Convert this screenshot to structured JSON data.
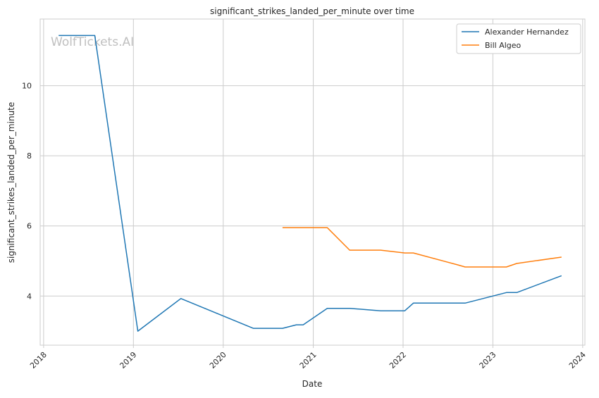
{
  "watermark": "WolfTickets.AI",
  "chart_data": {
    "type": "line",
    "title": "significant_strikes_landed_per_minute over time",
    "xlabel": "Date",
    "ylabel": "significant_strikes_landed_per_minute",
    "x_ticks": [
      "2018",
      "2019",
      "2020",
      "2021",
      "2022",
      "2023",
      "2024"
    ],
    "y_ticks": [
      4,
      6,
      8,
      10
    ],
    "xlim": [
      "2017-12-18",
      "2024-01-10"
    ],
    "ylim": [
      2.6,
      11.9
    ],
    "grid": true,
    "legend_position": "top-right",
    "series": [
      {
        "name": "Alexander Hernandez",
        "color": "#1f77b4",
        "points": [
          [
            "2018-03-03",
            11.43
          ],
          [
            "2018-07-28",
            11.43
          ],
          [
            "2019-01-19",
            3.0
          ],
          [
            "2019-07-13",
            3.93
          ],
          [
            "2020-05-02",
            3.08
          ],
          [
            "2020-08-29",
            3.08
          ],
          [
            "2020-10-24",
            3.18
          ],
          [
            "2020-11-21",
            3.18
          ],
          [
            "2021-02-27",
            3.65
          ],
          [
            "2021-05-29",
            3.65
          ],
          [
            "2021-10-02",
            3.58
          ],
          [
            "2022-01-08",
            3.58
          ],
          [
            "2022-02-12",
            3.8
          ],
          [
            "2022-09-10",
            3.8
          ],
          [
            "2023-02-25",
            4.1
          ],
          [
            "2023-04-08",
            4.1
          ],
          [
            "2023-10-07",
            4.58
          ]
        ]
      },
      {
        "name": "Bill Algeo",
        "color": "#ff7f0e",
        "points": [
          [
            "2020-08-29",
            5.95
          ],
          [
            "2021-02-27",
            5.95
          ],
          [
            "2021-05-29",
            5.31
          ],
          [
            "2021-10-02",
            5.31
          ],
          [
            "2022-01-08",
            5.23
          ],
          [
            "2022-02-12",
            5.23
          ],
          [
            "2022-08-06",
            4.9
          ],
          [
            "2022-09-10",
            4.83
          ],
          [
            "2023-02-25",
            4.83
          ],
          [
            "2023-04-08",
            4.93
          ],
          [
            "2023-10-07",
            5.11
          ]
        ]
      }
    ]
  }
}
